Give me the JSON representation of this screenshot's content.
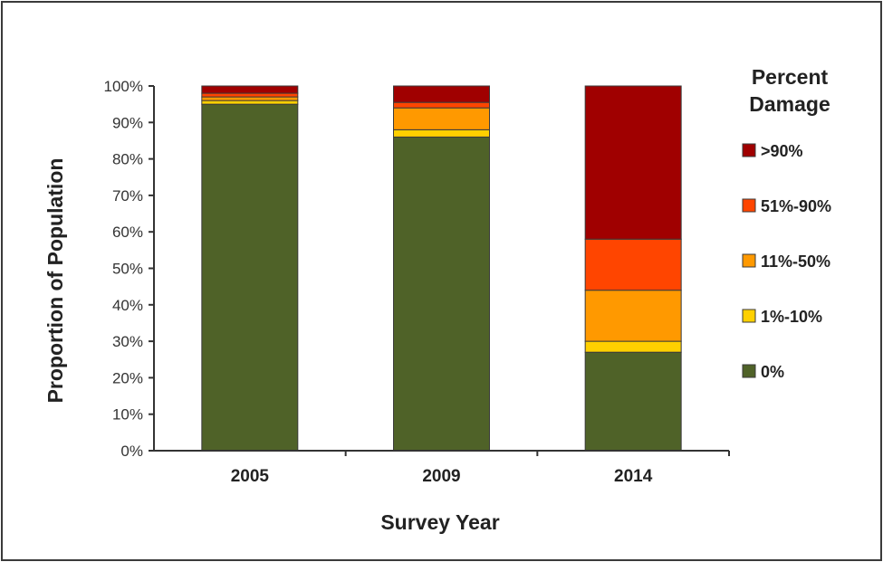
{
  "chart_data": {
    "type": "bar",
    "stacked": true,
    "categories": [
      "2005",
      "2009",
      "2014"
    ],
    "xlabel": "Survey Year",
    "ylabel": "Proportion of Population",
    "ylim": [
      0,
      100
    ],
    "y_ticks": [
      "0%",
      "10%",
      "20%",
      "30%",
      "40%",
      "50%",
      "60%",
      "70%",
      "80%",
      "90%",
      "100%"
    ],
    "legend": {
      "title": "Percent Damage",
      "position": "right",
      "entries": [
        ">90%",
        "51%-90%",
        "11%-50%",
        "1%-10%",
        "0%"
      ]
    },
    "series": [
      {
        "name": "0%",
        "color": "#4f6228",
        "values": [
          95,
          86,
          27
        ]
      },
      {
        "name": "1%-10%",
        "color": "#ffd000",
        "values": [
          1,
          2,
          3
        ]
      },
      {
        "name": "11%-50%",
        "color": "#ff9900",
        "values": [
          1,
          6,
          14
        ]
      },
      {
        "name": "51%-90%",
        "color": "#ff4500",
        "values": [
          1,
          1.5,
          14
        ]
      },
      {
        "name": ">90%",
        "color": "#a00000",
        "values": [
          2,
          4.5,
          42
        ]
      }
    ]
  }
}
